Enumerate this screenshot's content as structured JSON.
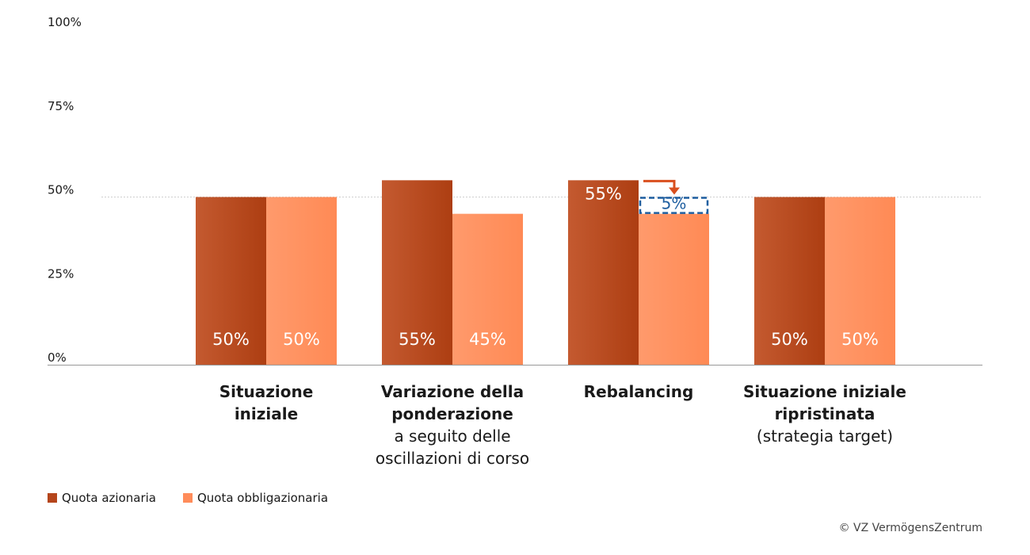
{
  "chart_data": {
    "type": "bar",
    "categories": [
      {
        "title": [
          "Situazione",
          "iniziale"
        ],
        "subtitle": []
      },
      {
        "title": [
          "Variazione della",
          "ponderazione"
        ],
        "subtitle": [
          "a seguito delle",
          "oscillazioni di corso"
        ]
      },
      {
        "title": [
          "Rebalancing"
        ],
        "subtitle": []
      },
      {
        "title": [
          "Situazione iniziale",
          "ripristinata"
        ],
        "subtitle": [
          "(strategia target)"
        ]
      }
    ],
    "series": [
      {
        "name": "Quota azionaria",
        "color": "#b5451b",
        "values": [
          50,
          55,
          55,
          50
        ],
        "labels": [
          "50%",
          "55%",
          "55%",
          "50%"
        ]
      },
      {
        "name": "Quota obbligazionaria",
        "color": "#ff8c5a",
        "values": [
          50,
          45,
          45,
          50
        ],
        "labels": [
          "50%",
          "45%",
          "",
          "50%"
        ]
      }
    ],
    "annotation": {
      "category": 2,
      "shift_value": 5,
      "label": "5%",
      "box_color": "#1f5fa0",
      "arrow_color": "#d94f1e"
    },
    "yticks": [
      0,
      25,
      50,
      75,
      100
    ],
    "ytick_labels": [
      "0%",
      "25%",
      "50%",
      "75%",
      "100%"
    ],
    "ylim": [
      0,
      100
    ],
    "reference_line": 50,
    "legend_position": "bottom-left"
  },
  "credit": "© VZ VermögensZentrum"
}
